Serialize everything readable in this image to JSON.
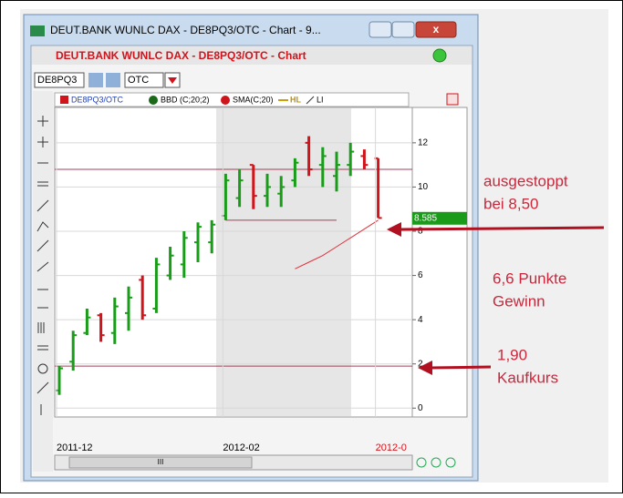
{
  "window": {
    "title": "DEUT.BANK WUNLC DAX - DE8PQ3/OTC - Chart - 9...",
    "header": "DEUT.BANK WUNLC DAX - DE8PQ3/OTC - Chart",
    "symbol": "DE8PQ3",
    "exchange": "OTC"
  },
  "legend": [
    "DE8PQ3/OTC",
    "BBD (C;20;2)",
    "SMA(C;20)",
    "HL",
    "LI"
  ],
  "scrollbar": "III",
  "annotations": [
    [
      "ausgestoppt",
      "bei 8,50"
    ],
    [
      "6,6 Punkte",
      "Gewinn"
    ],
    [
      "1,90",
      "Kaufkurs"
    ]
  ],
  "chart_data": {
    "type": "ohlc",
    "categories": [
      "2011-12",
      null,
      null,
      null,
      null,
      null,
      null,
      null,
      null,
      null,
      null,
      null,
      "2012-02",
      null,
      null,
      null,
      null,
      null,
      null,
      null,
      null,
      null,
      null,
      "2012-0"
    ],
    "open": [
      0.8,
      2.1,
      3.4,
      4.2,
      3.4,
      4.3,
      5.8,
      4.5,
      6.0,
      6.5,
      7.5,
      7.5,
      8.7,
      9.5,
      11.0,
      9.6,
      9.7,
      10.3,
      12.0,
      11.0,
      10.5,
      11.0,
      11.4,
      11.3
    ],
    "high": [
      1.9,
      3.5,
      4.5,
      4.3,
      5.0,
      5.5,
      6.0,
      6.8,
      7.3,
      8.0,
      8.4,
      8.5,
      10.6,
      10.8,
      11.0,
      10.6,
      10.5,
      11.3,
      12.3,
      11.8,
      11.6,
      12.0,
      11.7,
      11.3
    ],
    "low": [
      0.6,
      1.7,
      3.3,
      3.0,
      2.9,
      3.5,
      4.0,
      4.3,
      5.8,
      5.9,
      6.6,
      7.0,
      8.5,
      9.1,
      9.0,
      9.1,
      9.1,
      10.0,
      10.5,
      10.0,
      9.8,
      10.5,
      10.8,
      8.6
    ],
    "close": [
      1.8,
      3.3,
      4.1,
      3.3,
      4.6,
      5.0,
      4.2,
      6.5,
      6.9,
      7.7,
      8.2,
      8.3,
      10.3,
      10.3,
      9.6,
      10.0,
      10.0,
      11.1,
      10.8,
      11.4,
      11.0,
      11.6,
      11.0,
      8.6
    ],
    "up_color": "#1a9c1a",
    "down_color": "#d0141c",
    "ylim": [
      -0.4,
      13.6
    ],
    "yticks": [
      0,
      2,
      4,
      6,
      8,
      10,
      12
    ],
    "grid": true,
    "hlines": [
      {
        "value": 10.8,
        "color": "#a04058"
      },
      {
        "value": 1.9,
        "color": "#a04058"
      }
    ],
    "hl": {
      "value": 8.5,
      "from": 12,
      "to": 20,
      "color": "#a04058"
    },
    "sma": {
      "color": "#e0303a",
      "values": [
        null,
        null,
        null,
        null,
        null,
        null,
        null,
        null,
        null,
        null,
        null,
        null,
        null,
        null,
        null,
        null,
        null,
        6.3,
        6.6,
        6.9,
        7.3,
        7.7,
        8.1,
        8.5
      ]
    },
    "last_price": 8.585,
    "last_price_color": "#1a9c1a"
  }
}
